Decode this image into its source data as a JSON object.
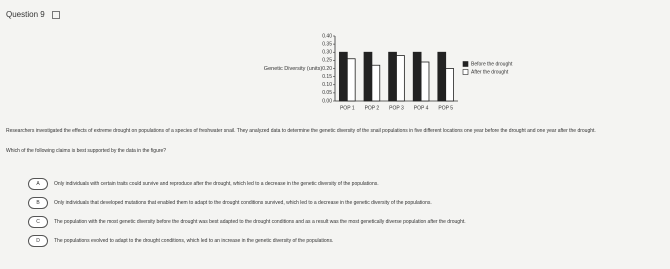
{
  "header": {
    "title": "Question 9"
  },
  "chart_data": {
    "type": "bar",
    "ylabel": "Genetic Diversity (units)",
    "categories": [
      "POP 1",
      "POP 2",
      "POP 3",
      "POP 4",
      "POP 5"
    ],
    "series": [
      {
        "name": "Before the drought",
        "color": "#222222",
        "values": [
          0.3,
          0.3,
          0.3,
          0.3,
          0.3
        ]
      },
      {
        "name": "After the drought",
        "color": "#ffffff",
        "values": [
          0.26,
          0.22,
          0.28,
          0.24,
          0.2
        ]
      }
    ],
    "ylim": [
      0,
      0.4
    ],
    "yticks": [
      {
        "value": 0,
        "label": "0.00"
      },
      {
        "value": 0.05,
        "label": "0.05"
      },
      {
        "value": 0.1,
        "label": "0.10"
      },
      {
        "value": 0.15,
        "label": "0.15"
      },
      {
        "value": 0.2,
        "label": "0.20"
      },
      {
        "value": 0.25,
        "label": "0.25"
      },
      {
        "value": 0.3,
        "label": "0.30"
      },
      {
        "value": 0.35,
        "label": "0.35"
      },
      {
        "value": 0.4,
        "label": "0.40"
      }
    ],
    "legend": "right"
  },
  "passage": "Researchers investigated the effects of extreme drought on populations of a species of freshwater snail. They analyzed data to determine the genetic diversity of the snail populations in five different locations one year before the drought and one year after the drought.",
  "question": "Which of the following claims is best supported by the data in the figure?",
  "options": [
    {
      "letter": "A",
      "text": "Only individuals with certain traits could survive and reproduce after the drought, which led to a decrease in the genetic diversity of the populations."
    },
    {
      "letter": "B",
      "text": "Only individuals that developed mutations that enabled them to adapt to the drought conditions survived, which led to a decrease in the genetic diversity of the populations."
    },
    {
      "letter": "C",
      "text": "The population with the most genetic diversity before the drought was best adapted to the drought conditions and as a result was the most genetically diverse population after the drought."
    },
    {
      "letter": "D",
      "text": "The populations evolved to adapt to the drought conditions, which led to an increase in the genetic diversity of the populations."
    }
  ]
}
